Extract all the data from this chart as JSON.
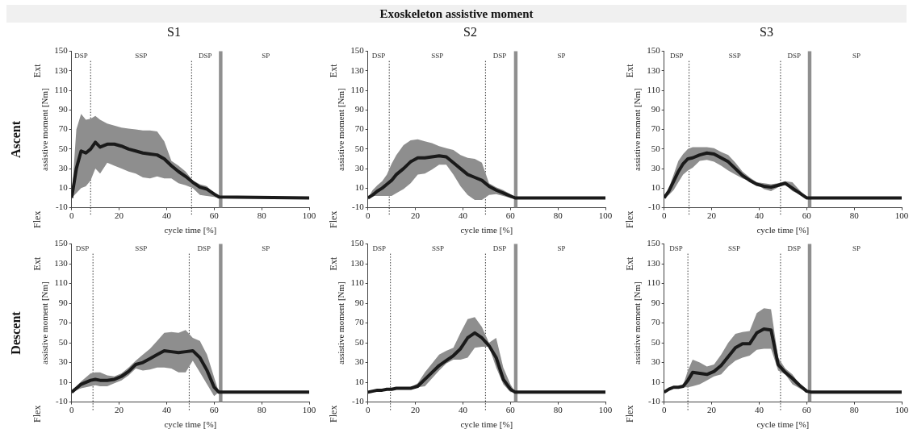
{
  "chart_data": [
    {
      "type": "line",
      "title": "S1",
      "subtitle": "Ascent",
      "xlabel": "cycle time [%]",
      "ylabel": "assistive moment [Nm]",
      "annotations": [
        "Exoskeleton assistive moment",
        "Ext",
        "Flex",
        "DSP",
        "SSP",
        "DSP",
        "SP"
      ],
      "x": [
        0,
        2,
        4,
        6,
        8,
        10,
        12,
        15,
        18,
        21,
        24,
        27,
        30,
        33,
        36,
        39,
        42,
        45,
        48,
        51,
        54,
        57,
        60,
        62,
        100
      ],
      "series": [
        {
          "color": "#1a1a1a",
          "values": [
            0,
            30,
            48,
            46,
            50,
            57,
            52,
            55,
            55,
            53,
            50,
            48,
            46,
            45,
            44,
            40,
            33,
            27,
            22,
            16,
            11,
            9,
            4,
            1,
            0
          ],
          "upper": [
            0,
            70,
            86,
            80,
            81,
            84,
            80,
            76,
            74,
            72,
            71,
            70,
            69,
            69,
            68,
            58,
            38,
            33,
            27,
            18,
            14,
            12,
            4,
            1,
            0
          ],
          "lower": [
            0,
            5,
            10,
            12,
            18,
            30,
            25,
            36,
            33,
            30,
            27,
            25,
            21,
            20,
            22,
            20,
            20,
            15,
            13,
            10,
            3,
            2,
            1,
            0,
            0
          ]
        }
      ],
      "xlim": [
        0,
        100
      ],
      "xticks": [
        0,
        20,
        40,
        60,
        80,
        100
      ],
      "ylim": [
        -10,
        150
      ],
      "yticks": [
        -10,
        10,
        30,
        50,
        70,
        90,
        110,
        130,
        150
      ],
      "ref_lines": [
        {
          "axis": "x",
          "value": 8,
          "color": "#333333",
          "line_style": "dotted"
        },
        {
          "axis": "x",
          "value": 50.5,
          "color": "#333333",
          "line_style": "dotted"
        }
      ],
      "bands": [
        {
          "axis": "x",
          "from": 62,
          "to": 63.5,
          "color": "#8f8f8f"
        }
      ],
      "legend": false,
      "marker": "none",
      "grid": false
    },
    {
      "type": "line",
      "title": "S2",
      "xlabel": "cycle time [%]",
      "ylabel": "assistive moment [Nm]",
      "annotations": [
        "Ext",
        "Flex",
        "DSP",
        "SSP",
        "DSP",
        "SP"
      ],
      "x": [
        0,
        2,
        4,
        6,
        8,
        10,
        12,
        15,
        18,
        21,
        24,
        27,
        30,
        33,
        36,
        39,
        42,
        45,
        48,
        51,
        54,
        57,
        60,
        62,
        100
      ],
      "series": [
        {
          "color": "#1a1a1a",
          "values": [
            0,
            3,
            7,
            10,
            14,
            18,
            24,
            30,
            37,
            41,
            41,
            42,
            43,
            42,
            36,
            30,
            24,
            21,
            18,
            12,
            8,
            5,
            2,
            0,
            0
          ],
          "upper": [
            0,
            8,
            13,
            17,
            24,
            35,
            44,
            54,
            59,
            60,
            58,
            56,
            53,
            51,
            49,
            44,
            41,
            40,
            36,
            15,
            11,
            8,
            4,
            0,
            0
          ],
          "lower": [
            0,
            2,
            2,
            2,
            2,
            2,
            5,
            9,
            15,
            24,
            25,
            29,
            34,
            34,
            24,
            12,
            3,
            -2,
            -2,
            3,
            4,
            2,
            0,
            0,
            0
          ]
        }
      ],
      "xlim": [
        0,
        100
      ],
      "xticks": [
        0,
        20,
        40,
        60,
        80,
        100
      ],
      "ylim": [
        -10,
        150
      ],
      "yticks": [
        -10,
        10,
        30,
        50,
        70,
        90,
        110,
        130,
        150
      ],
      "ref_lines": [
        {
          "axis": "x",
          "value": 9,
          "color": "#333333",
          "line_style": "dotted"
        },
        {
          "axis": "x",
          "value": 49.5,
          "color": "#333333",
          "line_style": "dotted"
        }
      ],
      "bands": [
        {
          "axis": "x",
          "from": 61.5,
          "to": 63,
          "color": "#8f8f8f"
        }
      ],
      "legend": false,
      "marker": "none",
      "grid": false
    },
    {
      "type": "line",
      "title": "S3",
      "xlabel": "cycle time [%]",
      "ylabel": "assistive moment [Nm]",
      "annotations": [
        "Ext",
        "Flex",
        "DSP",
        "SSP",
        "DSP",
        "SP"
      ],
      "x": [
        0,
        2,
        4,
        6,
        8,
        10,
        12,
        15,
        18,
        21,
        24,
        27,
        30,
        33,
        36,
        39,
        42,
        45,
        48,
        51,
        54,
        57,
        60,
        62,
        100
      ],
      "series": [
        {
          "color": "#1a1a1a",
          "values": [
            0,
            7,
            17,
            27,
            35,
            40,
            41,
            44,
            46,
            45,
            41,
            37,
            30,
            23,
            18,
            14,
            12,
            11,
            13,
            15,
            10,
            5,
            0,
            0,
            0
          ],
          "upper": [
            0,
            10,
            24,
            38,
            45,
            50,
            52,
            52,
            52,
            51,
            47,
            44,
            36,
            27,
            21,
            16,
            15,
            14,
            15,
            17,
            16,
            8,
            1,
            0,
            0
          ],
          "lower": [
            0,
            3,
            8,
            16,
            24,
            28,
            31,
            38,
            39,
            37,
            33,
            28,
            24,
            20,
            17,
            14,
            9,
            7,
            11,
            14,
            7,
            4,
            0,
            0,
            0
          ]
        }
      ],
      "xlim": [
        0,
        100
      ],
      "xticks": [
        0,
        20,
        40,
        60,
        80,
        100
      ],
      "ylim": [
        -10,
        150
      ],
      "yticks": [
        -10,
        10,
        30,
        50,
        70,
        90,
        110,
        130,
        150
      ],
      "ref_lines": [
        {
          "axis": "x",
          "value": 10.5,
          "color": "#333333",
          "line_style": "dotted"
        },
        {
          "axis": "x",
          "value": 49,
          "color": "#333333",
          "line_style": "dotted"
        }
      ],
      "bands": [
        {
          "axis": "x",
          "from": 60.5,
          "to": 62,
          "color": "#8f8f8f"
        }
      ],
      "legend": false,
      "marker": "none",
      "grid": false
    },
    {
      "type": "line",
      "subtitle": "Descent",
      "xlabel": "cycle time [%]",
      "ylabel": "assistive moment [Nm]",
      "annotations": [
        "Ext",
        "Flex",
        "DSP",
        "SSP",
        "DSP",
        "SP"
      ],
      "x": [
        0,
        2,
        4,
        6,
        8,
        10,
        12,
        15,
        18,
        21,
        24,
        27,
        30,
        33,
        36,
        39,
        42,
        45,
        48,
        51,
        54,
        57,
        60,
        62,
        100
      ],
      "series": [
        {
          "color": "#1a1a1a",
          "values": [
            0,
            4,
            8,
            10,
            12,
            13,
            12,
            12,
            13,
            16,
            21,
            28,
            30,
            34,
            38,
            42,
            41,
            40,
            41,
            42,
            35,
            22,
            5,
            0,
            0
          ],
          "upper": [
            0,
            6,
            11,
            15,
            19,
            20,
            20,
            17,
            16,
            19,
            25,
            32,
            38,
            44,
            52,
            60,
            61,
            60,
            63,
            55,
            52,
            38,
            15,
            0,
            0
          ],
          "lower": [
            0,
            2,
            4,
            5,
            6,
            7,
            6,
            6,
            9,
            12,
            17,
            24,
            22,
            23,
            25,
            25,
            24,
            20,
            20,
            32,
            20,
            8,
            -4,
            0,
            0
          ]
        }
      ],
      "xlim": [
        0,
        100
      ],
      "xticks": [
        0,
        20,
        40,
        60,
        80,
        100
      ],
      "ylim": [
        -10,
        150
      ],
      "yticks": [
        -10,
        10,
        30,
        50,
        70,
        90,
        110,
        130,
        150
      ],
      "ref_lines": [
        {
          "axis": "x",
          "value": 9,
          "color": "#333333",
          "line_style": "dotted"
        },
        {
          "axis": "x",
          "value": 49.5,
          "color": "#333333",
          "line_style": "dotted"
        }
      ],
      "bands": [
        {
          "axis": "x",
          "from": 62,
          "to": 63.5,
          "color": "#8f8f8f"
        }
      ],
      "legend": false,
      "marker": "none",
      "grid": false
    },
    {
      "type": "line",
      "xlabel": "cycle time [%]",
      "ylabel": "assistive moment [Nm]",
      "annotations": [
        "Ext",
        "Flex",
        "DSP",
        "SSP",
        "DSP",
        "SP"
      ],
      "x": [
        0,
        2,
        4,
        6,
        8,
        10,
        12,
        15,
        18,
        21,
        24,
        27,
        30,
        33,
        36,
        39,
        42,
        45,
        48,
        51,
        54,
        57,
        60,
        62,
        100
      ],
      "series": [
        {
          "color": "#1a1a1a",
          "values": [
            0,
            1,
            2,
            2,
            3,
            3,
            4,
            4,
            4,
            6,
            13,
            20,
            27,
            32,
            37,
            44,
            55,
            60,
            55,
            47,
            35,
            13,
            3,
            0,
            0
          ],
          "upper": [
            0,
            1,
            2,
            3,
            3,
            4,
            4,
            5,
            5,
            9,
            20,
            29,
            38,
            42,
            45,
            60,
            74,
            76,
            66,
            50,
            55,
            25,
            8,
            0,
            0
          ],
          "lower": [
            0,
            1,
            2,
            2,
            3,
            3,
            4,
            4,
            4,
            5,
            6,
            14,
            22,
            29,
            33,
            33,
            35,
            45,
            46,
            46,
            25,
            8,
            0,
            0,
            0
          ]
        }
      ],
      "xlim": [
        0,
        100
      ],
      "xticks": [
        0,
        20,
        40,
        60,
        80,
        100
      ],
      "ylim": [
        -10,
        150
      ],
      "yticks": [
        -10,
        10,
        30,
        50,
        70,
        90,
        110,
        130,
        150
      ],
      "ref_lines": [
        {
          "axis": "x",
          "value": 9.5,
          "color": "#333333",
          "line_style": "dotted"
        },
        {
          "axis": "x",
          "value": 49.5,
          "color": "#333333",
          "line_style": "dotted"
        }
      ],
      "bands": [
        {
          "axis": "x",
          "from": 61.5,
          "to": 63,
          "color": "#8f8f8f"
        }
      ],
      "legend": false,
      "marker": "none",
      "grid": false
    },
    {
      "type": "line",
      "xlabel": "cycle time [%]",
      "ylabel": "assistive moment [Nm]",
      "annotations": [
        "Ext",
        "Flex",
        "DSP",
        "SSP",
        "DSP",
        "SP"
      ],
      "x": [
        0,
        2,
        4,
        6,
        8,
        10,
        12,
        15,
        18,
        21,
        24,
        27,
        30,
        33,
        36,
        39,
        42,
        45,
        48,
        51,
        54,
        57,
        60,
        62,
        100
      ],
      "series": [
        {
          "color": "#1a1a1a",
          "values": [
            0,
            3,
            5,
            5,
            6,
            12,
            20,
            19,
            18,
            21,
            27,
            36,
            45,
            49,
            49,
            60,
            64,
            63,
            28,
            20,
            14,
            7,
            1,
            0,
            0
          ],
          "upper": [
            0,
            3,
            5,
            6,
            7,
            22,
            33,
            30,
            26,
            28,
            38,
            50,
            59,
            61,
            62,
            80,
            85,
            84,
            35,
            24,
            18,
            8,
            1,
            0,
            0
          ],
          "lower": [
            0,
            2,
            4,
            5,
            5,
            5,
            6,
            8,
            12,
            16,
            18,
            26,
            32,
            35,
            37,
            43,
            44,
            44,
            22,
            18,
            8,
            4,
            0,
            0,
            0
          ]
        }
      ],
      "xlim": [
        0,
        100
      ],
      "xticks": [
        0,
        20,
        40,
        60,
        80,
        100
      ],
      "ylim": [
        -10,
        150
      ],
      "yticks": [
        -10,
        10,
        30,
        50,
        70,
        90,
        110,
        130,
        150
      ],
      "ref_lines": [
        {
          "axis": "x",
          "value": 10,
          "color": "#333333",
          "line_style": "dotted"
        },
        {
          "axis": "x",
          "value": 49,
          "color": "#333333",
          "line_style": "dotted"
        }
      ],
      "bands": [
        {
          "axis": "x",
          "from": 60.5,
          "to": 62,
          "color": "#8f8f8f"
        }
      ],
      "legend": false,
      "marker": "none",
      "grid": false
    }
  ]
}
